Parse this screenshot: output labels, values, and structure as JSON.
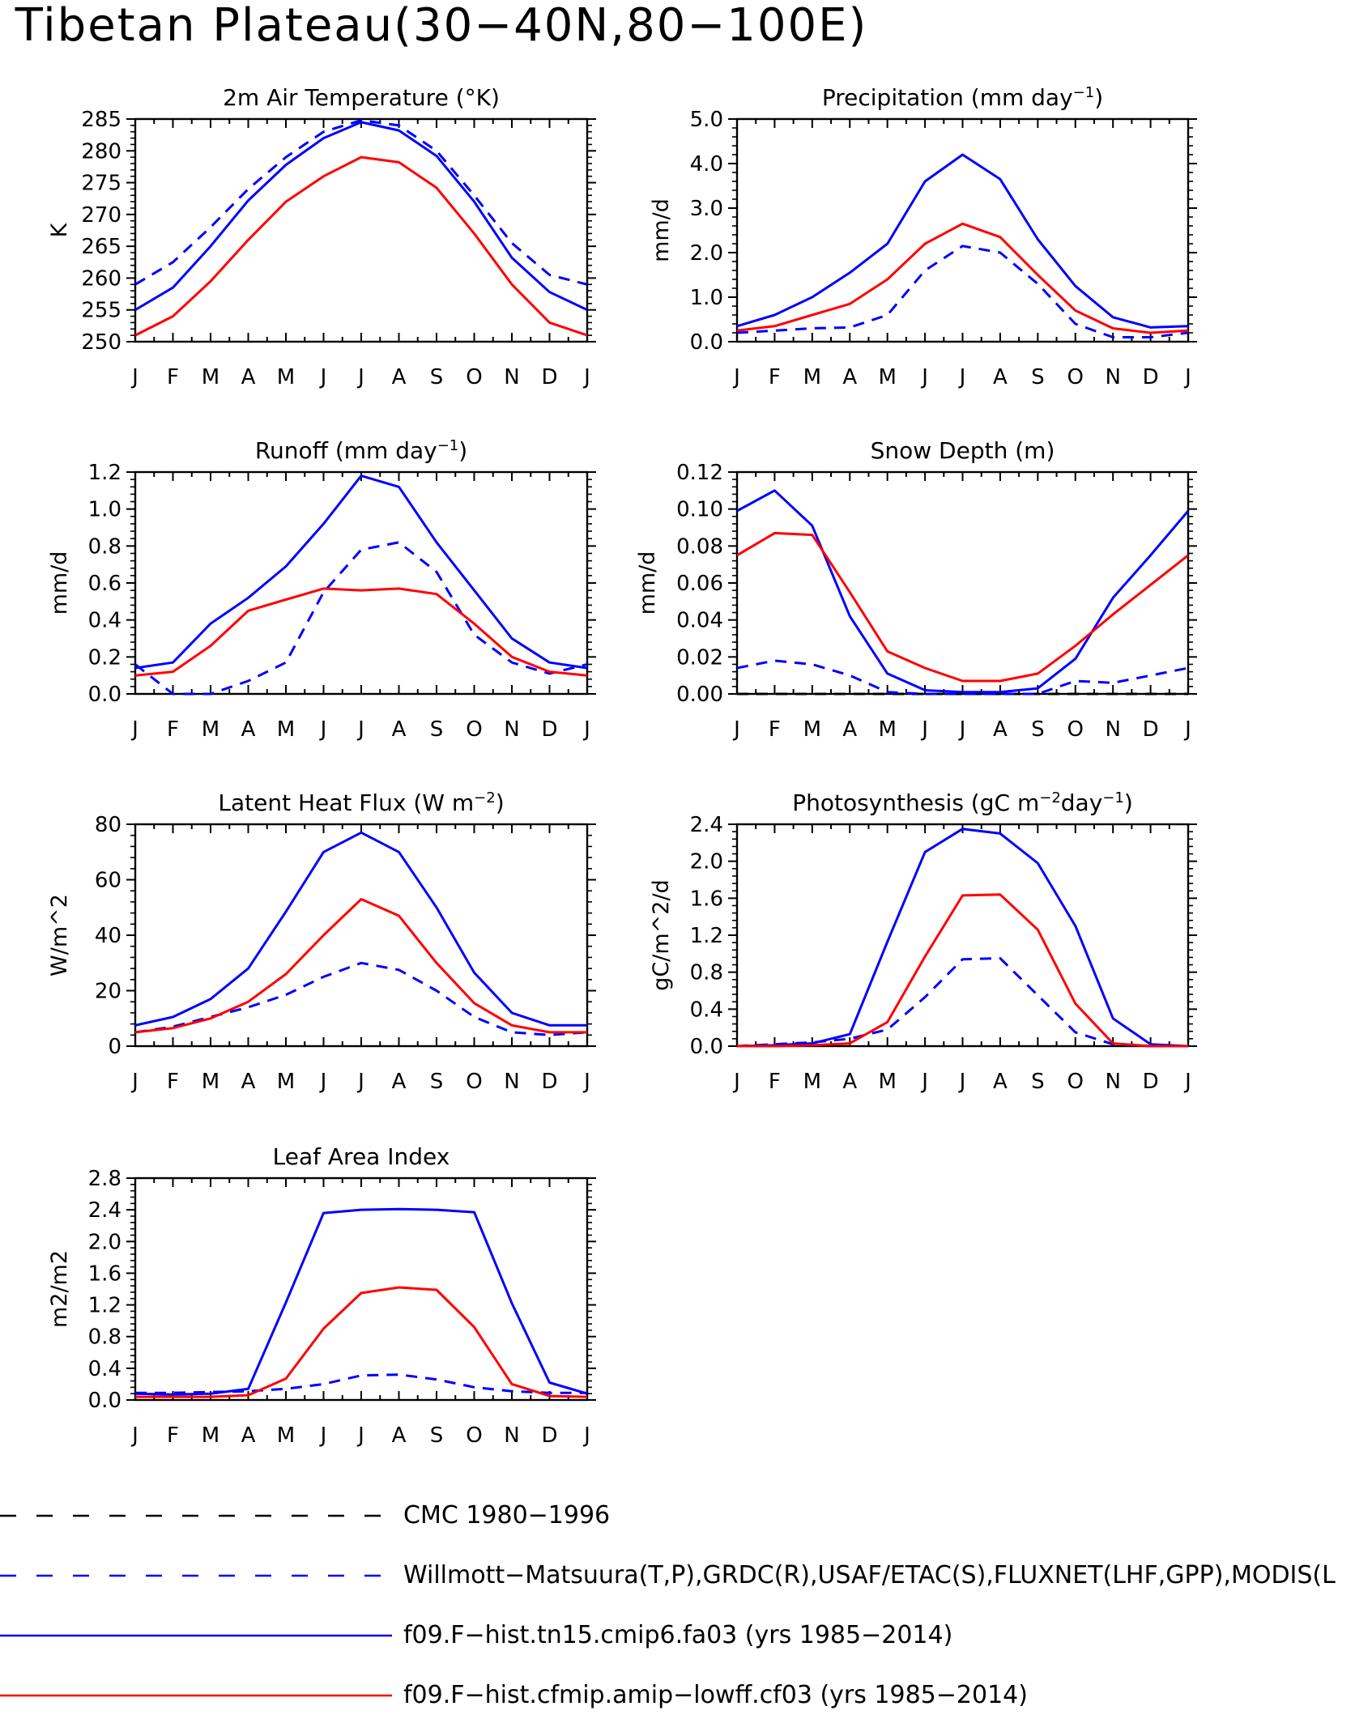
{
  "title": "Tibetan Plateau(30−40N,80−100E)",
  "months": [
    "J",
    "F",
    "M",
    "A",
    "M",
    "J",
    "J",
    "A",
    "S",
    "O",
    "N",
    "D",
    "J"
  ],
  "colors": {
    "obs": "#0000ff",
    "cmc": "#000000",
    "model_fa03": "#0000ff",
    "model_cf03": "#ff0000"
  },
  "legend": [
    {
      "label": "CMC 1980−1996",
      "color": "#000000",
      "dash": true
    },
    {
      "label": "Willmott−Matsuura(T,P),GRDC(R),USAF/ETAC(S),FLUXNET(LHF,GPP),MODIS(L",
      "color": "#0000ff",
      "dash": true
    },
    {
      "label": "f09.F−hist.tn15.cmip6.fa03 (yrs 1985−2014)",
      "color": "#0000ff",
      "dash": false
    },
    {
      "label": "f09.F−hist.cfmip.amip−lowff.cf03 (yrs 1985−2014)",
      "color": "#ff0000",
      "dash": false
    }
  ],
  "chart_data": [
    {
      "type": "line",
      "title_text": "2m Air Temperature (°K)",
      "ylabel": "K",
      "ylim": [
        250,
        285
      ],
      "yticks": [
        250,
        255,
        260,
        265,
        270,
        275,
        280,
        285
      ],
      "ytick_labels": [
        "250",
        "255",
        "260",
        "265",
        "270",
        "275",
        "280",
        "285"
      ],
      "series": [
        {
          "color": "#0000ff",
          "dash": true,
          "values": [
            259,
            262.5,
            268,
            274,
            279,
            283,
            284.8,
            284,
            280,
            273,
            265.5,
            260.5,
            259
          ]
        },
        {
          "color": "#0000ff",
          "dash": false,
          "values": [
            255,
            258.5,
            265,
            272.2,
            277.8,
            282,
            284.5,
            283.2,
            279.2,
            272,
            263.2,
            257.8,
            255
          ]
        },
        {
          "color": "#ff0000",
          "dash": false,
          "values": [
            251,
            254,
            259.5,
            266,
            272,
            276,
            279,
            278.2,
            274.2,
            267,
            259,
            253,
            251
          ]
        }
      ]
    },
    {
      "type": "line",
      "title_text": "Precipitation (mm day",
      "title_sup": "−1",
      "title_tail": ")",
      "ylabel": "mm/d",
      "ylim": [
        0,
        5
      ],
      "yticks": [
        0,
        1,
        2,
        3,
        4,
        5
      ],
      "ytick_labels": [
        "0.0",
        "1.0",
        "2.0",
        "3.0",
        "4.0",
        "5.0"
      ],
      "series": [
        {
          "color": "#0000ff",
          "dash": true,
          "values": [
            0.2,
            0.25,
            0.3,
            0.32,
            0.6,
            1.6,
            2.15,
            2.0,
            1.3,
            0.4,
            0.1,
            0.1,
            0.2
          ]
        },
        {
          "color": "#0000ff",
          "dash": false,
          "values": [
            0.35,
            0.6,
            1.0,
            1.55,
            2.2,
            3.6,
            4.2,
            3.65,
            2.3,
            1.25,
            0.55,
            0.32,
            0.35
          ]
        },
        {
          "color": "#ff0000",
          "dash": false,
          "values": [
            0.25,
            0.35,
            0.6,
            0.85,
            1.4,
            2.2,
            2.65,
            2.35,
            1.5,
            0.7,
            0.3,
            0.2,
            0.25
          ]
        }
      ]
    },
    {
      "type": "line",
      "title_text": "Runoff (mm day",
      "title_sup": "−1",
      "title_tail": ")",
      "ylabel": "mm/d",
      "ylim": [
        0,
        1.2
      ],
      "yticks": [
        0,
        0.2,
        0.4,
        0.6,
        0.8,
        1.0,
        1.2
      ],
      "ytick_labels": [
        "0.0",
        "0.2",
        "0.4",
        "0.6",
        "0.8",
        "1.0",
        "1.2"
      ],
      "series": [
        {
          "color": "#0000ff",
          "dash": true,
          "values": [
            0.16,
            0.0,
            0.0,
            0.07,
            0.17,
            0.55,
            0.78,
            0.82,
            0.66,
            0.32,
            0.17,
            0.11,
            0.16
          ]
        },
        {
          "color": "#0000ff",
          "dash": false,
          "values": [
            0.14,
            0.17,
            0.38,
            0.52,
            0.69,
            0.92,
            1.18,
            1.12,
            0.82,
            0.56,
            0.3,
            0.17,
            0.14
          ]
        },
        {
          "color": "#ff0000",
          "dash": false,
          "values": [
            0.1,
            0.12,
            0.26,
            0.45,
            0.51,
            0.57,
            0.56,
            0.57,
            0.54,
            0.38,
            0.2,
            0.12,
            0.1
          ]
        }
      ]
    },
    {
      "type": "line",
      "title_text": "Snow Depth (m)",
      "ylabel": "mm/d",
      "ylim": [
        0,
        0.12
      ],
      "yticks": [
        0,
        0.02,
        0.04,
        0.06,
        0.08,
        0.1,
        0.12
      ],
      "ytick_labels": [
        "0.00",
        "0.02",
        "0.04",
        "0.06",
        "0.08",
        "0.10",
        "0.12"
      ],
      "series": [
        {
          "color": "#000000",
          "dash": true,
          "values": [
            0,
            0,
            0,
            0,
            0,
            0,
            0,
            0,
            0,
            0,
            0,
            0,
            0
          ]
        },
        {
          "color": "#0000ff",
          "dash": true,
          "values": [
            0.014,
            0.018,
            0.016,
            0.01,
            0.001,
            0,
            0,
            0,
            0,
            0.007,
            0.006,
            0.01,
            0.014
          ]
        },
        {
          "color": "#0000ff",
          "dash": false,
          "values": [
            0.099,
            0.11,
            0.091,
            0.042,
            0.011,
            0.002,
            0.001,
            0.001,
            0.003,
            0.019,
            0.052,
            0.075,
            0.099
          ]
        },
        {
          "color": "#ff0000",
          "dash": false,
          "values": [
            0.075,
            0.087,
            0.086,
            0.055,
            0.023,
            0.014,
            0.007,
            0.007,
            0.011,
            0.026,
            0.043,
            0.059,
            0.075
          ]
        }
      ]
    },
    {
      "type": "line",
      "title_text": "Latent Heat Flux (W m",
      "title_sup": "−2",
      "title_tail": ")",
      "ylabel": "W/m^2",
      "ylim": [
        0,
        80
      ],
      "yticks": [
        0,
        20,
        40,
        60,
        80
      ],
      "ytick_labels": [
        "0",
        "20",
        "40",
        "60",
        "80"
      ],
      "series": [
        {
          "color": "#0000ff",
          "dash": true,
          "values": [
            5,
            7,
            10.5,
            14,
            18.5,
            25,
            30,
            27.5,
            20,
            10.5,
            5,
            4,
            5
          ]
        },
        {
          "color": "#0000ff",
          "dash": false,
          "values": [
            7.5,
            10.5,
            17,
            28,
            48.5,
            70,
            77,
            70,
            50,
            26.5,
            12,
            7.5,
            7.5
          ]
        },
        {
          "color": "#ff0000",
          "dash": false,
          "values": [
            5,
            6.5,
            10,
            16,
            26,
            40,
            53,
            47,
            30,
            15.5,
            7.5,
            5,
            5
          ]
        }
      ]
    },
    {
      "type": "line",
      "title_text": "Photosynthesis (gC m",
      "title_sup": "−2",
      "title_mid": "day",
      "title_sup2": "−1",
      "title_tail": ")",
      "ylabel": "gC/m^2/d",
      "ylim": [
        0,
        2.4
      ],
      "yticks": [
        0,
        0.4,
        0.8,
        1.2,
        1.6,
        2.0,
        2.4
      ],
      "ytick_labels": [
        "0.0",
        "0.4",
        "0.8",
        "1.2",
        "1.6",
        "2.0",
        "2.4"
      ],
      "series": [
        {
          "color": "#0000ff",
          "dash": true,
          "values": [
            0,
            0.02,
            0.04,
            0.08,
            0.18,
            0.53,
            0.94,
            0.95,
            0.55,
            0.15,
            0.02,
            0,
            0
          ]
        },
        {
          "color": "#0000ff",
          "dash": false,
          "values": [
            0,
            0.01,
            0.03,
            0.13,
            1.13,
            2.1,
            2.35,
            2.3,
            1.98,
            1.3,
            0.3,
            0.02,
            0
          ]
        },
        {
          "color": "#ff0000",
          "dash": false,
          "values": [
            0,
            0,
            0.01,
            0.03,
            0.26,
            0.97,
            1.63,
            1.64,
            1.26,
            0.46,
            0.03,
            0,
            0
          ]
        }
      ]
    },
    {
      "type": "line",
      "title_text": "Leaf Area Index",
      "ylabel": "m2/m2",
      "ylim": [
        0,
        2.8
      ],
      "yticks": [
        0,
        0.4,
        0.8,
        1.2,
        1.6,
        2.0,
        2.4,
        2.8
      ],
      "ytick_labels": [
        "0.0",
        "0.4",
        "0.8",
        "1.2",
        "1.6",
        "2.0",
        "2.4",
        "2.8"
      ],
      "series": [
        {
          "color": "#0000ff",
          "dash": true,
          "values": [
            0.09,
            0.09,
            0.1,
            0.11,
            0.14,
            0.2,
            0.31,
            0.32,
            0.26,
            0.16,
            0.11,
            0.09,
            0.09
          ]
        },
        {
          "color": "#0000ff",
          "dash": false,
          "values": [
            0.08,
            0.07,
            0.08,
            0.14,
            1.23,
            2.36,
            2.4,
            2.41,
            2.4,
            2.37,
            1.22,
            0.22,
            0.08
          ]
        },
        {
          "color": "#ff0000",
          "dash": false,
          "values": [
            0.04,
            0.04,
            0.04,
            0.06,
            0.27,
            0.9,
            1.35,
            1.42,
            1.39,
            0.92,
            0.2,
            0.05,
            0.04
          ]
        }
      ]
    }
  ]
}
